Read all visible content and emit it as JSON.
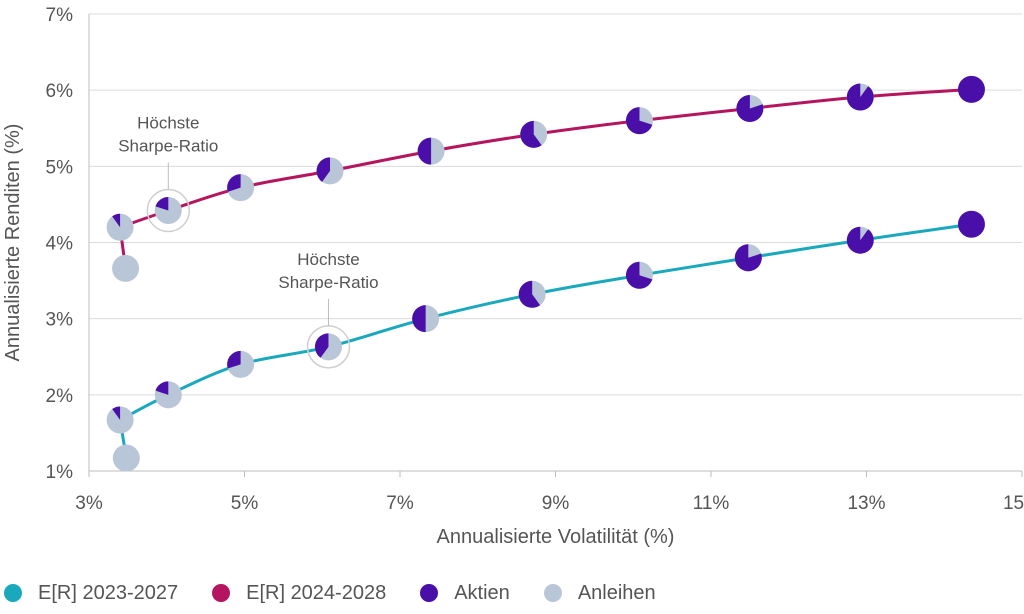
{
  "chart_data": {
    "type": "line",
    "xlabel": "Annualisierte Volatilität (%)",
    "ylabel": "Annualisierte Renditen (%)",
    "xlim": [
      3,
      15
    ],
    "ylim": [
      1,
      7
    ],
    "x_ticks": [
      3,
      5,
      7,
      9,
      11,
      13,
      15
    ],
    "x_tick_labels": [
      "3%",
      "5%",
      "7%",
      "9%",
      "11%",
      "13%",
      "15%"
    ],
    "y_ticks": [
      1,
      2,
      3,
      4,
      5,
      6,
      7
    ],
    "y_tick_labels": [
      "1%",
      "2%",
      "3%",
      "4%",
      "5%",
      "6%",
      "7%"
    ],
    "series": [
      {
        "name": "E[R] 2023-2027",
        "color": "#1AA9BC",
        "points": [
          {
            "x": 3.48,
            "y": 1.17,
            "aktien": 0.0
          },
          {
            "x": 3.4,
            "y": 1.67,
            "aktien": 0.1
          },
          {
            "x": 4.02,
            "y": 2.0,
            "aktien": 0.2
          },
          {
            "x": 4.95,
            "y": 2.4,
            "aktien": 0.3
          },
          {
            "x": 6.08,
            "y": 2.63,
            "aktien": 0.4
          },
          {
            "x": 7.33,
            "y": 3.0,
            "aktien": 0.5
          },
          {
            "x": 8.7,
            "y": 3.32,
            "aktien": 0.6
          },
          {
            "x": 10.08,
            "y": 3.57,
            "aktien": 0.7
          },
          {
            "x": 11.48,
            "y": 3.8,
            "aktien": 0.8
          },
          {
            "x": 12.92,
            "y": 4.03,
            "aktien": 0.9
          },
          {
            "x": 14.35,
            "y": 4.24,
            "aktien": 1.0
          }
        ]
      },
      {
        "name": "E[R] 2024-2028",
        "color": "#B5155E",
        "points": [
          {
            "x": 3.47,
            "y": 3.66,
            "aktien": 0.0
          },
          {
            "x": 3.4,
            "y": 4.2,
            "aktien": 0.1
          },
          {
            "x": 4.02,
            "y": 4.42,
            "aktien": 0.2
          },
          {
            "x": 4.95,
            "y": 4.72,
            "aktien": 0.3
          },
          {
            "x": 6.1,
            "y": 4.94,
            "aktien": 0.4
          },
          {
            "x": 7.4,
            "y": 5.2,
            "aktien": 0.5
          },
          {
            "x": 8.72,
            "y": 5.42,
            "aktien": 0.6
          },
          {
            "x": 10.08,
            "y": 5.6,
            "aktien": 0.7
          },
          {
            "x": 11.5,
            "y": 5.76,
            "aktien": 0.8
          },
          {
            "x": 12.92,
            "y": 5.91,
            "aktien": 0.9
          },
          {
            "x": 14.35,
            "y": 6.01,
            "aktien": 1.0
          }
        ]
      }
    ],
    "pie_colors": {
      "aktien": "#4A0FA8",
      "anleihen": "#B9C6D8"
    },
    "annotations": [
      {
        "series": 1,
        "point": 2,
        "line1": "Höchste",
        "line2": "Sharpe-Ratio"
      },
      {
        "series": 0,
        "point": 4,
        "line1": "Höchste",
        "line2": "Sharpe-Ratio"
      }
    ],
    "legend": [
      {
        "label": "E[R] 2023-2027",
        "color": "#1AA9BC"
      },
      {
        "label": "E[R] 2024-2028",
        "color": "#B5155E"
      },
      {
        "label": "Aktien",
        "color": "#4A0FA8"
      },
      {
        "label": "Anleihen",
        "color": "#B9C6D8"
      }
    ]
  }
}
